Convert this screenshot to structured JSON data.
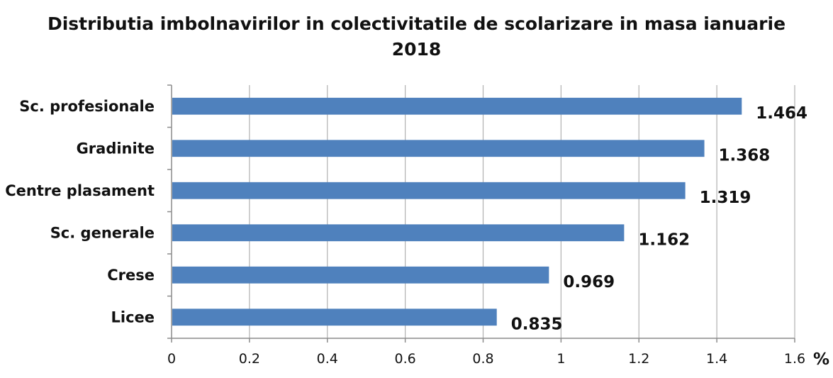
{
  "chart_data": {
    "type": "bar",
    "orientation": "horizontal",
    "title_line1": "Distributia imbolnavirilor  in colectivitatile de scolarizare  in masa ianuarie",
    "title_line2": "2018",
    "categories": [
      "Sc. profesionale",
      "Gradinite",
      "Centre plasament",
      "Sc. generale",
      "Crese",
      "Licee"
    ],
    "values": [
      1.464,
      1.368,
      1.319,
      1.162,
      0.969,
      0.835
    ],
    "value_labels": [
      "1.464",
      "1.368",
      "1.319",
      "1.162",
      "0.969",
      "0.835"
    ],
    "xlim": [
      0,
      1.6
    ],
    "x_ticks": [
      0,
      0.2,
      0.4,
      0.6,
      0.8,
      1,
      1.2,
      1.4,
      1.6
    ],
    "x_tick_labels": [
      "0",
      "0.2",
      "0.4",
      "0.6",
      "0.8",
      "1",
      "1.2",
      "1.4",
      "1.6"
    ],
    "unit_label": "%",
    "grid": true,
    "bar_color": "#4f81bd",
    "grid_color": "#b0b0b0",
    "axis_color": "#8c8c8c"
  }
}
